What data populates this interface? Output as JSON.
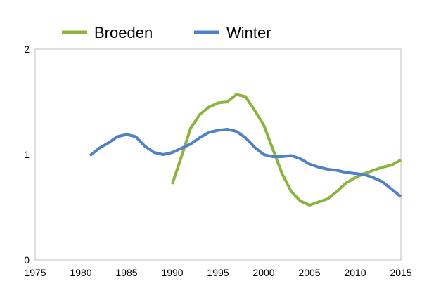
{
  "chart_data": {
    "type": "line",
    "title": "",
    "xlabel": "",
    "ylabel": "",
    "xlim": [
      1975,
      2015
    ],
    "ylim": [
      0,
      2
    ],
    "x_ticks": [
      "1975",
      "1980",
      "1985",
      "1990",
      "1995",
      "2000",
      "2005",
      "2010",
      "2015"
    ],
    "y_ticks": [
      "0",
      "1",
      "2"
    ],
    "grid": false,
    "legend_position": "top",
    "series": [
      {
        "name": "Broeden",
        "color": "#8db33f",
        "points": [
          [
            1990,
            0.72
          ],
          [
            1991,
            0.98
          ],
          [
            1992,
            1.25
          ],
          [
            1993,
            1.38
          ],
          [
            1994,
            1.45
          ],
          [
            1995,
            1.49
          ],
          [
            1996,
            1.5
          ],
          [
            1997,
            1.57
          ],
          [
            1998,
            1.55
          ],
          [
            1999,
            1.42
          ],
          [
            2000,
            1.28
          ],
          [
            2001,
            1.05
          ],
          [
            2002,
            0.82
          ],
          [
            2003,
            0.65
          ],
          [
            2004,
            0.56
          ],
          [
            2005,
            0.52
          ],
          [
            2006,
            0.55
          ],
          [
            2007,
            0.58
          ],
          [
            2008,
            0.65
          ],
          [
            2009,
            0.73
          ],
          [
            2010,
            0.78
          ],
          [
            2011,
            0.82
          ],
          [
            2012,
            0.85
          ],
          [
            2013,
            0.88
          ],
          [
            2014,
            0.9
          ],
          [
            2015,
            0.95
          ]
        ]
      },
      {
        "name": "Winter",
        "color": "#4f81c7",
        "points": [
          [
            1981,
            0.99
          ],
          [
            1982,
            1.06
          ],
          [
            1983,
            1.11
          ],
          [
            1984,
            1.17
          ],
          [
            1985,
            1.19
          ],
          [
            1986,
            1.17
          ],
          [
            1987,
            1.08
          ],
          [
            1988,
            1.02
          ],
          [
            1989,
            1.0
          ],
          [
            1990,
            1.02
          ],
          [
            1991,
            1.06
          ],
          [
            1992,
            1.1
          ],
          [
            1993,
            1.16
          ],
          [
            1994,
            1.21
          ],
          [
            1995,
            1.23
          ],
          [
            1996,
            1.24
          ],
          [
            1997,
            1.22
          ],
          [
            1998,
            1.16
          ],
          [
            1999,
            1.07
          ],
          [
            2000,
            1.0
          ],
          [
            2001,
            0.98
          ],
          [
            2002,
            0.98
          ],
          [
            2003,
            0.99
          ],
          [
            2004,
            0.96
          ],
          [
            2005,
            0.91
          ],
          [
            2006,
            0.88
          ],
          [
            2007,
            0.86
          ],
          [
            2008,
            0.85
          ],
          [
            2009,
            0.83
          ],
          [
            2010,
            0.82
          ],
          [
            2011,
            0.81
          ],
          [
            2012,
            0.78
          ],
          [
            2013,
            0.74
          ],
          [
            2014,
            0.67
          ],
          [
            2015,
            0.6
          ]
        ]
      }
    ]
  }
}
